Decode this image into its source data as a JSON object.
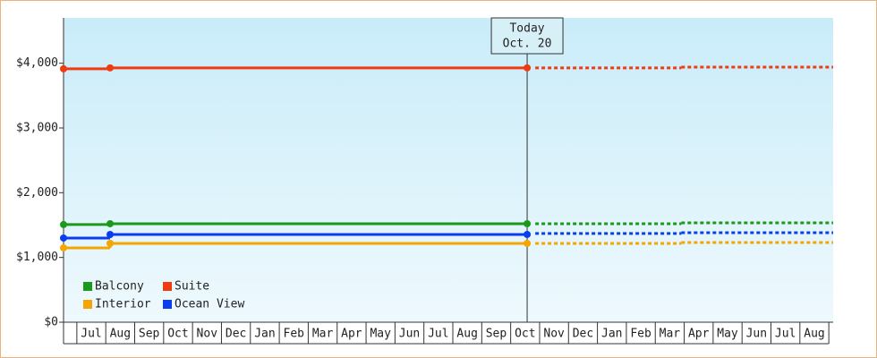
{
  "chart_data": {
    "type": "step-line",
    "categories": [
      null,
      "Jul",
      "Aug",
      "Sep",
      "Oct",
      "Nov",
      "Dec",
      "Jan",
      "Feb",
      "Mar",
      "Apr",
      "May",
      "Jun",
      "Jul",
      "Aug",
      "Sep",
      "Oct",
      "Nov",
      "Dec",
      "Jan",
      "Feb",
      "Mar",
      "Apr",
      "May",
      "Jun",
      "Jul",
      "Aug"
    ],
    "xlim": [
      -0.46,
      26.15
    ],
    "ylim": [
      0,
      4700
    ],
    "yticks": [
      {
        "value": 0,
        "label": "$0"
      },
      {
        "value": 1000,
        "label": "$1,000"
      },
      {
        "value": 2000,
        "label": "$2,000"
      },
      {
        "value": 3000,
        "label": "$3,000"
      },
      {
        "value": 4000,
        "label": "$4,000"
      }
    ],
    "annotation": {
      "x": 15.57,
      "lines": [
        "Today",
        "Oct. 20"
      ]
    },
    "series": [
      {
        "name": "Balcony",
        "color": "#1a9a1a",
        "x": [
          -0.46,
          1.15,
          15.57
        ],
        "values": [
          1508,
          1521,
          1521
        ],
        "forecast_x": [
          15.85,
          20.9,
          26.15
        ],
        "forecast": [
          1521,
          1535,
          1535
        ]
      },
      {
        "name": "Suite",
        "color": "#f03a10",
        "x": [
          -0.46,
          1.15,
          15.57
        ],
        "values": [
          3914,
          3928,
          3928
        ],
        "forecast_x": [
          15.85,
          20.9,
          26.15
        ],
        "forecast": [
          3928,
          3940,
          3940
        ]
      },
      {
        "name": "Interior",
        "color": "#f5a500",
        "x": [
          -0.46,
          1.15,
          15.57
        ],
        "values": [
          1148,
          1217,
          1217
        ],
        "forecast_x": [
          15.85,
          20.9,
          26.15
        ],
        "forecast": [
          1217,
          1231,
          1231
        ]
      },
      {
        "name": "Ocean View",
        "color": "#0a3cf0",
        "x": [
          -0.46,
          1.15,
          15.57
        ],
        "values": [
          1300,
          1355,
          1355
        ],
        "forecast_x": [
          15.85,
          20.9,
          26.15
        ],
        "forecast": [
          1370,
          1383,
          1383
        ]
      }
    ]
  }
}
